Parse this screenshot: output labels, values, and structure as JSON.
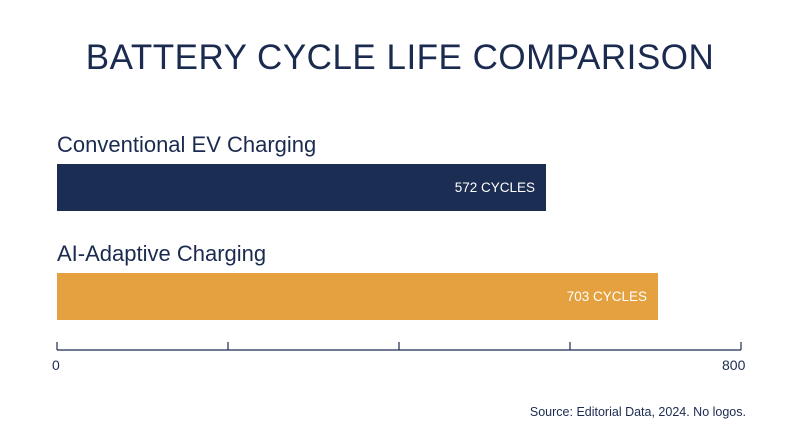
{
  "chart_data": {
    "type": "bar",
    "orientation": "horizontal",
    "title": "BATTERY CYCLE LIFE COMPARISON",
    "categories": [
      "Conventional EV Charging",
      "AI-Adaptive Charging"
    ],
    "values": [
      572,
      703
    ],
    "value_labels": [
      "572 CYCLES",
      "703 CYCLES"
    ],
    "colors": [
      "#1b2d52",
      "#e5a13f"
    ],
    "xlim": [
      0,
      800
    ],
    "tick_labels": [
      "0",
      "800"
    ],
    "grid": false
  },
  "source": "Source: Editorial Data, 2024. No logos."
}
